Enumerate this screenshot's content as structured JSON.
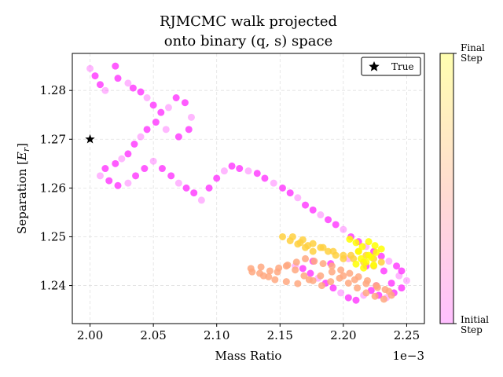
{
  "chart_data": {
    "type": "scatter",
    "title": "RJMCMC walk projected\nonto binary (q, s) space",
    "title_lines": [
      "RJMCMC walk projected",
      "onto binary (q, s) space"
    ],
    "xlabel": "Mass Ratio",
    "ylabel": "Separation [E_r]",
    "x_offset_label": "1e−3",
    "x_scale": 0.001,
    "xlim": [
      1.986,
      2.264
    ],
    "ylim": [
      1.2322,
      1.2876
    ],
    "xticks": [
      2.0,
      2.05,
      2.1,
      2.15,
      2.2,
      2.25
    ],
    "xtick_labels": [
      "2.00",
      "2.05",
      "2.10",
      "2.15",
      "2.20",
      "2.25"
    ],
    "yticks": [
      1.24,
      1.25,
      1.26,
      1.27,
      1.28
    ],
    "ytick_labels": [
      "1.24",
      "1.25",
      "1.26",
      "1.27",
      "1.28"
    ],
    "grid": true,
    "legend": {
      "placement": "top-right",
      "entries": [
        {
          "label": "True",
          "marker": "star"
        }
      ]
    },
    "true_point": {
      "x": 2.0,
      "y": 1.27
    },
    "colorbar": {
      "top_label": "Final\nStep",
      "bottom_label": "Initial\nStep",
      "colors": [
        "#ffff33",
        "#ffc8b4",
        "#ffc0ff"
      ]
    },
    "colors": {
      "early": "#ff33ff",
      "mid": "#ff66cc",
      "late_orange": "#ffa880",
      "late_yellow": "#ffd040",
      "final": "#ffff00"
    },
    "walk_segments": [
      {
        "stage": "early",
        "points": [
          [
            2.0,
            1.2845
          ],
          [
            2.004,
            1.283
          ],
          [
            2.008,
            1.2812
          ],
          [
            2.012,
            1.28
          ],
          [
            2.02,
            1.285
          ],
          [
            2.022,
            1.2825
          ],
          [
            2.03,
            1.2815
          ],
          [
            2.034,
            1.2805
          ],
          [
            2.04,
            1.2797
          ],
          [
            2.045,
            1.2785
          ],
          [
            2.05,
            1.277
          ],
          [
            2.056,
            1.2755
          ],
          [
            2.062,
            1.2765
          ],
          [
            2.068,
            1.2785
          ],
          [
            2.075,
            1.2775
          ],
          [
            2.08,
            1.2745
          ],
          [
            2.078,
            1.272
          ],
          [
            2.07,
            1.2705
          ],
          [
            2.06,
            1.272
          ],
          [
            2.052,
            1.2735
          ],
          [
            2.045,
            1.272
          ],
          [
            2.04,
            1.2705
          ],
          [
            2.035,
            1.269
          ],
          [
            2.03,
            1.267
          ],
          [
            2.025,
            1.266
          ],
          [
            2.02,
            1.265
          ],
          [
            2.012,
            1.264
          ],
          [
            2.008,
            1.2625
          ],
          [
            2.015,
            1.2615
          ],
          [
            2.022,
            1.2605
          ],
          [
            2.03,
            1.261
          ],
          [
            2.036,
            1.2625
          ],
          [
            2.043,
            1.264
          ],
          [
            2.05,
            1.2655
          ],
          [
            2.057,
            1.264
          ],
          [
            2.064,
            1.2625
          ],
          [
            2.07,
            1.261
          ],
          [
            2.076,
            1.26
          ],
          [
            2.082,
            1.259
          ],
          [
            2.088,
            1.2575
          ],
          [
            2.094,
            1.26
          ],
          [
            2.1,
            1.262
          ],
          [
            2.106,
            1.2635
          ],
          [
            2.112,
            1.2645
          ],
          [
            2.118,
            1.264
          ],
          [
            2.125,
            1.2635
          ],
          [
            2.132,
            1.263
          ],
          [
            2.138,
            1.262
          ],
          [
            2.145,
            1.261
          ],
          [
            2.152,
            1.26
          ],
          [
            2.158,
            1.259
          ],
          [
            2.164,
            1.258
          ],
          [
            2.17,
            1.2565
          ],
          [
            2.176,
            1.2555
          ],
          [
            2.182,
            1.2545
          ],
          [
            2.188,
            1.2535
          ],
          [
            2.194,
            1.2525
          ],
          [
            2.2,
            1.2515
          ],
          [
            2.206,
            1.25
          ],
          [
            2.212,
            1.249
          ],
          [
            2.218,
            1.248
          ],
          [
            2.224,
            1.247
          ],
          [
            2.23,
            1.246
          ],
          [
            2.236,
            1.245
          ],
          [
            2.242,
            1.244
          ],
          [
            2.246,
            1.243
          ],
          [
            2.25,
            1.241
          ],
          [
            2.246,
            1.2395
          ],
          [
            2.24,
            1.2385
          ],
          [
            2.234,
            1.2375
          ],
          [
            2.228,
            1.238
          ],
          [
            2.222,
            1.239
          ],
          [
            2.216,
            1.238
          ],
          [
            2.21,
            1.237
          ],
          [
            2.204,
            1.2375
          ],
          [
            2.198,
            1.2385
          ],
          [
            2.192,
            1.2395
          ],
          [
            2.186,
            1.2405
          ],
          [
            2.18,
            1.2415
          ],
          [
            2.174,
            1.2425
          ],
          [
            2.168,
            1.2435
          ],
          [
            2.162,
            1.244
          ],
          [
            2.176,
            1.245
          ],
          [
            2.19,
            1.2445
          ],
          [
            2.204,
            1.2455
          ],
          [
            2.218,
            1.244
          ],
          [
            2.232,
            1.243
          ],
          [
            2.244,
            1.242
          ],
          [
            2.238,
            1.2405
          ],
          [
            2.226,
            1.24
          ]
        ]
      },
      {
        "stage": "late_orange",
        "points": [
          [
            2.127,
            1.2435
          ],
          [
            2.134,
            1.2425
          ],
          [
            2.141,
            1.2418
          ],
          [
            2.148,
            1.2428
          ],
          [
            2.155,
            1.244
          ],
          [
            2.162,
            1.2432
          ],
          [
            2.169,
            1.242
          ],
          [
            2.176,
            1.241
          ],
          [
            2.183,
            1.24
          ],
          [
            2.19,
            1.2408
          ],
          [
            2.197,
            1.2415
          ],
          [
            2.204,
            1.2405
          ],
          [
            2.211,
            1.2395
          ],
          [
            2.218,
            1.2385
          ],
          [
            2.225,
            1.2378
          ],
          [
            2.232,
            1.2372
          ],
          [
            2.238,
            1.238
          ],
          [
            2.233,
            1.2392
          ],
          [
            2.226,
            1.24
          ],
          [
            2.219,
            1.241
          ],
          [
            2.212,
            1.2418
          ],
          [
            2.205,
            1.2425
          ],
          [
            2.198,
            1.2432
          ],
          [
            2.191,
            1.244
          ],
          [
            2.184,
            1.2445
          ],
          [
            2.177,
            1.245
          ],
          [
            2.17,
            1.2455
          ],
          [
            2.163,
            1.2448
          ],
          [
            2.156,
            1.2442
          ],
          [
            2.149,
            1.2436
          ],
          [
            2.142,
            1.243
          ],
          [
            2.135,
            1.2438
          ],
          [
            2.128,
            1.2428
          ],
          [
            2.137,
            1.242
          ],
          [
            2.146,
            1.2412
          ],
          [
            2.155,
            1.2408
          ],
          [
            2.164,
            1.2404
          ],
          [
            2.173,
            1.2412
          ],
          [
            2.182,
            1.242
          ],
          [
            2.191,
            1.2428
          ],
          [
            2.2,
            1.242
          ],
          [
            2.209,
            1.2412
          ],
          [
            2.218,
            1.2404
          ],
          [
            2.227,
            1.2396
          ],
          [
            2.236,
            1.2388
          ]
        ]
      },
      {
        "stage": "late_yellow",
        "points": [
          [
            2.152,
            1.25
          ],
          [
            2.158,
            1.2492
          ],
          [
            2.164,
            1.2485
          ],
          [
            2.17,
            1.2478
          ],
          [
            2.176,
            1.247
          ],
          [
            2.182,
            1.2478
          ],
          [
            2.188,
            1.247
          ],
          [
            2.194,
            1.2462
          ],
          [
            2.2,
            1.2455
          ],
          [
            2.206,
            1.2462
          ],
          [
            2.212,
            1.247
          ],
          [
            2.218,
            1.2462
          ],
          [
            2.224,
            1.2455
          ],
          [
            2.23,
            1.2448
          ],
          [
            2.224,
            1.244
          ],
          [
            2.216,
            1.2448
          ],
          [
            2.208,
            1.2455
          ],
          [
            2.2,
            1.2462
          ],
          [
            2.192,
            1.247
          ],
          [
            2.184,
            1.2478
          ],
          [
            2.176,
            1.2486
          ],
          [
            2.168,
            1.2494
          ],
          [
            2.16,
            1.25
          ],
          [
            2.166,
            1.2488
          ],
          [
            2.172,
            1.2482
          ]
        ]
      },
      {
        "stage": "final",
        "points": [
          [
            2.205,
            1.2495
          ],
          [
            2.21,
            1.2488
          ],
          [
            2.215,
            1.248
          ],
          [
            2.22,
            1.249
          ],
          [
            2.225,
            1.2482
          ],
          [
            2.23,
            1.2475
          ],
          [
            2.226,
            1.2468
          ],
          [
            2.22,
            1.2462
          ],
          [
            2.214,
            1.2455
          ],
          [
            2.218,
            1.2448
          ],
          [
            2.224,
            1.2442
          ],
          [
            2.216,
            1.2436
          ],
          [
            2.21,
            1.2444
          ],
          [
            2.212,
            1.247
          ],
          [
            2.222,
            1.2458
          ]
        ]
      }
    ]
  }
}
